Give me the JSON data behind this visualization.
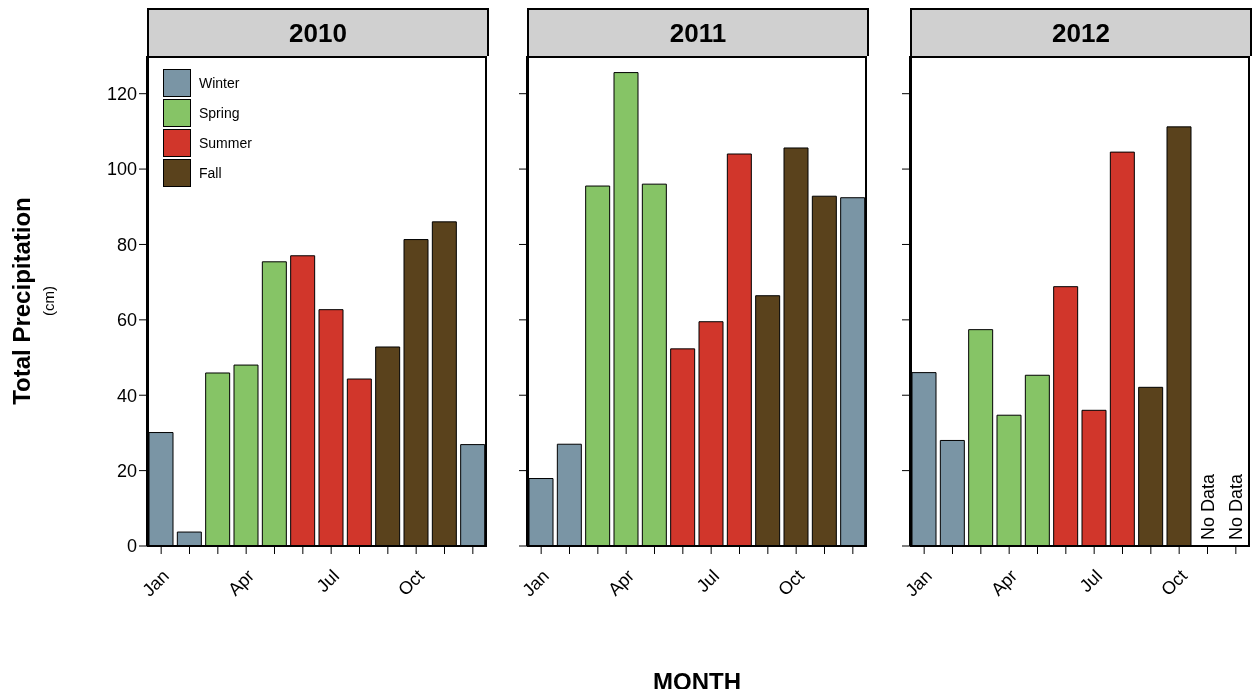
{
  "chart_data": [
    {
      "type": "bar",
      "title": "2010",
      "ylabel": "Total Precipitation",
      "annotations": [
        "(cm)"
      ],
      "stacked": true,
      "legend": "top left",
      "grid": false,
      "ylim": [
        0,
        130
      ],
      "yticks": [
        0,
        20,
        40,
        60,
        80,
        100,
        120
      ],
      "categories": [
        "Jan",
        null,
        null,
        "Apr",
        null,
        null,
        "Jul",
        null,
        null,
        "Oct",
        null,
        null
      ],
      "series": [
        {
          "name": "Winter",
          "color": "#7a95a5",
          "values": [
            30.1,
            3.7,
            null,
            null,
            null,
            null,
            null,
            null,
            null,
            null,
            null,
            26.9
          ]
        },
        {
          "name": "Spring",
          "color": "#86c466",
          "values": [
            null,
            null,
            45.9,
            48,
            75.4,
            null,
            null,
            null,
            null,
            null,
            null,
            null
          ]
        },
        {
          "name": "Summer",
          "color": "#d1362b",
          "values": [
            null,
            null,
            null,
            null,
            null,
            77,
            62.7,
            44.3,
            null,
            null,
            null,
            null
          ]
        },
        {
          "name": "Fall",
          "color": "#5a421c",
          "values": [
            null,
            null,
            null,
            null,
            null,
            null,
            null,
            null,
            52.8,
            81.3,
            86,
            null
          ]
        }
      ]
    },
    {
      "type": "bar",
      "title": "2011",
      "xlabel": "MONTH",
      "stacked": true,
      "grid": false,
      "tick_labels": "x",
      "ylim": [
        0,
        130
      ],
      "yticks": [
        0,
        20,
        40,
        60,
        80,
        100,
        120
      ],
      "categories": [
        "Jan",
        null,
        null,
        "Apr",
        null,
        null,
        "Jul",
        null,
        null,
        "Oct",
        null,
        null
      ],
      "series": [
        {
          "color": "#7a95a5",
          "values": [
            17.9,
            27,
            null,
            null,
            null,
            null,
            null,
            null,
            null,
            null,
            null,
            92.4
          ]
        },
        {
          "color": "#86c466",
          "values": [
            null,
            null,
            95.5,
            125.6,
            96,
            null,
            null,
            null,
            null,
            null,
            null,
            null
          ]
        },
        {
          "color": "#d1362b",
          "values": [
            null,
            null,
            null,
            null,
            null,
            52.3,
            59.5,
            104,
            null,
            null,
            null,
            null
          ]
        },
        {
          "color": "#5a421c",
          "values": [
            null,
            null,
            null,
            null,
            null,
            null,
            null,
            null,
            66.4,
            105.6,
            92.8,
            null
          ]
        }
      ]
    },
    {
      "type": "bar",
      "title": "2012",
      "annotations": [
        "No Data",
        "No Data"
      ],
      "stacked": true,
      "grid": false,
      "tick_labels": "x",
      "ylim": [
        0,
        130
      ],
      "yticks": [
        0,
        20,
        40,
        60,
        80,
        100,
        120
      ],
      "categories": [
        "Jan",
        null,
        null,
        "Apr",
        null,
        null,
        "Jul",
        null,
        null,
        "Oct",
        null,
        null
      ],
      "series": [
        {
          "color": "#7a95a5",
          "values": [
            46,
            28,
            null,
            null,
            null,
            null,
            null,
            null,
            null,
            null,
            null,
            null
          ]
        },
        {
          "color": "#86c466",
          "values": [
            null,
            null,
            57.4,
            34.7,
            45.3,
            null,
            null,
            null,
            null,
            null,
            null,
            null
          ]
        },
        {
          "color": "#d1362b",
          "values": [
            null,
            null,
            null,
            null,
            null,
            68.8,
            36,
            104.5,
            null,
            null,
            null,
            null
          ]
        },
        {
          "color": "#5a421c",
          "values": [
            null,
            null,
            null,
            null,
            null,
            null,
            null,
            null,
            42.1,
            111.2,
            null,
            null
          ]
        }
      ]
    }
  ]
}
